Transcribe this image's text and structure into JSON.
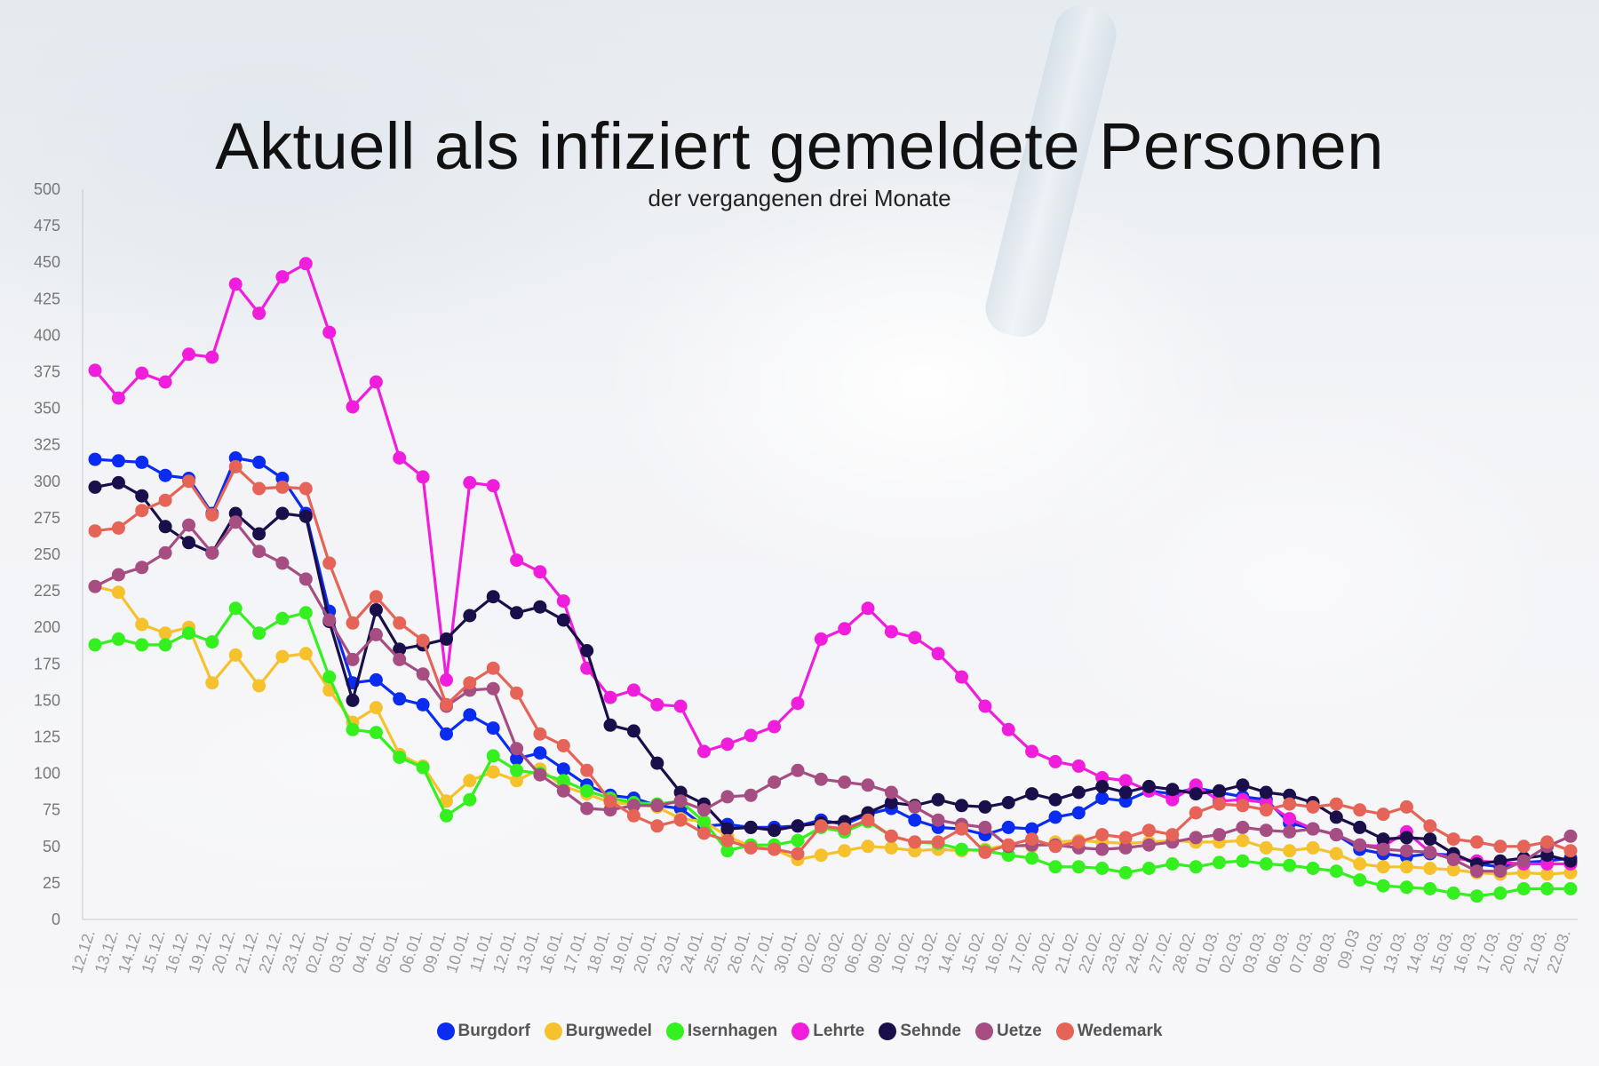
{
  "chart_data": {
    "type": "line",
    "title": "Aktuell als infiziert gemeldete Personen",
    "subtitle": "der vergangenen drei Monate",
    "xlabel": "",
    "ylabel": "",
    "ylim": [
      0,
      500
    ],
    "yticks": [
      0,
      25,
      50,
      75,
      100,
      125,
      150,
      175,
      200,
      225,
      250,
      275,
      300,
      325,
      350,
      375,
      400,
      425,
      450,
      475,
      500
    ],
    "grid": false,
    "legend_position": "bottom",
    "categories": [
      "12.12.",
      "13.12.",
      "14.12.",
      "15.12.",
      "16.12.",
      "19.12.",
      "20.12.",
      "21.12.",
      "22.12.",
      "23.12.",
      "02.01.",
      "03.01.",
      "04.01.",
      "05.01.",
      "06.01.",
      "09.01.",
      "10.01.",
      "11.01.",
      "12.01.",
      "13.01.",
      "16.01.",
      "17.01.",
      "18.01.",
      "19.01.",
      "20.01.",
      "23.01.",
      "24.01.",
      "25.01.",
      "26.01.",
      "27.01.",
      "30.01.",
      "02.02.",
      "03.02.",
      "06.02.",
      "09.02.",
      "10.02.",
      "13.02.",
      "14.02.",
      "15.02.",
      "16.02.",
      "17.02.",
      "20.02.",
      "21.02.",
      "22.02.",
      "23.02.",
      "24.02.",
      "27.02.",
      "28.02.",
      "01.03.",
      "02.03.",
      "03.03.",
      "06.03.",
      "07.03.",
      "08.03.",
      "09.03",
      "10.03.",
      "13.03.",
      "14.03.",
      "15.03.",
      "16.03.",
      "17.03.",
      "20.03.",
      "21.03.",
      "22.03."
    ],
    "series": [
      {
        "name": "Burgdorf",
        "color": "#0a2cf0",
        "values": [
          315,
          314,
          313,
          304,
          302,
          278,
          316,
          313,
          302,
          278,
          211,
          162,
          164,
          151,
          147,
          127,
          140,
          131,
          110,
          114,
          103,
          92,
          85,
          83,
          78,
          76,
          64,
          65,
          63,
          63,
          64,
          68,
          65,
          72,
          76,
          68,
          63,
          62,
          58,
          63,
          62,
          70,
          73,
          83,
          81,
          88,
          86,
          90,
          87,
          84,
          82,
          66,
          62,
          58,
          48,
          45,
          43,
          45,
          44,
          38,
          36,
          39,
          40,
          42
        ]
      },
      {
        "name": "Burgwedel",
        "color": "#f5c22e",
        "values": [
          228,
          224,
          202,
          196,
          200,
          162,
          181,
          160,
          180,
          182,
          157,
          135,
          145,
          113,
          105,
          81,
          95,
          101,
          95,
          103,
          91,
          86,
          80,
          79,
          77,
          69,
          67,
          57,
          50,
          48,
          41,
          44,
          47,
          50,
          49,
          47,
          48,
          47,
          48,
          51,
          50,
          53,
          54,
          53,
          52,
          53,
          54,
          53,
          53,
          54,
          49,
          47,
          49,
          45,
          38,
          36,
          36,
          35,
          34,
          32,
          31,
          32,
          31,
          32
        ]
      },
      {
        "name": "Isernhagen",
        "color": "#33f01e",
        "values": [
          188,
          192,
          188,
          188,
          196,
          190,
          213,
          196,
          206,
          210,
          166,
          130,
          128,
          111,
          104,
          71,
          82,
          112,
          102,
          100,
          95,
          88,
          83,
          80,
          79,
          81,
          67,
          47,
          51,
          51,
          54,
          63,
          60,
          67,
          57,
          53,
          52,
          48,
          47,
          44,
          42,
          36,
          36,
          35,
          32,
          35,
          38,
          36,
          39,
          40,
          38,
          37,
          35,
          33,
          27,
          23,
          22,
          21,
          18,
          16,
          18,
          21,
          21,
          21
        ]
      },
      {
        "name": "Lehrte",
        "color": "#f01edc",
        "values": [
          376,
          357,
          374,
          368,
          387,
          385,
          435,
          415,
          440,
          449,
          402,
          351,
          368,
          316,
          303,
          164,
          299,
          297,
          246,
          238,
          218,
          172,
          152,
          157,
          147,
          146,
          115,
          120,
          126,
          132,
          148,
          192,
          199,
          213,
          197,
          193,
          182,
          166,
          146,
          130,
          115,
          108,
          105,
          97,
          95,
          88,
          82,
          92,
          81,
          82,
          80,
          69,
          62,
          58,
          51,
          50,
          60,
          46,
          42,
          40,
          39,
          38,
          38,
          38
        ]
      },
      {
        "name": "Sehnde",
        "color": "#1a0f4a",
        "values": [
          296,
          299,
          290,
          269,
          258,
          251,
          278,
          264,
          278,
          276,
          204,
          150,
          212,
          185,
          188,
          192,
          208,
          221,
          210,
          214,
          205,
          184,
          133,
          129,
          107,
          87,
          79,
          62,
          63,
          61,
          64,
          66,
          67,
          73,
          80,
          78,
          82,
          78,
          77,
          80,
          86,
          82,
          87,
          91,
          87,
          91,
          89,
          86,
          88,
          92,
          87,
          85,
          80,
          70,
          63,
          55,
          56,
          55,
          45,
          38,
          40,
          42,
          44,
          40
        ]
      },
      {
        "name": "Uetze",
        "color": "#a64d82",
        "values": [
          228,
          236,
          241,
          251,
          270,
          251,
          272,
          252,
          244,
          233,
          205,
          178,
          195,
          178,
          168,
          146,
          157,
          158,
          117,
          99,
          88,
          76,
          75,
          78,
          78,
          81,
          75,
          84,
          85,
          94,
          102,
          96,
          94,
          92,
          87,
          77,
          68,
          65,
          63,
          50,
          51,
          51,
          49,
          48,
          49,
          51,
          53,
          56,
          58,
          63,
          61,
          60,
          62,
          58,
          51,
          48,
          47,
          46,
          41,
          33,
          33,
          40,
          50,
          57
        ]
      },
      {
        "name": "Wedemark",
        "color": "#e66457",
        "values": [
          266,
          268,
          280,
          287,
          300,
          277,
          310,
          295,
          296,
          295,
          244,
          203,
          221,
          203,
          191,
          147,
          162,
          172,
          155,
          127,
          119,
          102,
          81,
          71,
          64,
          68,
          59,
          54,
          49,
          48,
          45,
          64,
          62,
          68,
          57,
          53,
          53,
          62,
          46,
          51,
          55,
          50,
          53,
          58,
          56,
          61,
          58,
          73,
          79,
          78,
          75,
          79,
          77,
          79,
          75,
          72,
          77,
          64,
          55,
          53,
          50,
          50,
          53,
          47
        ]
      }
    ]
  },
  "legend": {
    "items": [
      {
        "label": "Burgdorf",
        "color": "#0a2cf0"
      },
      {
        "label": "Burgwedel",
        "color": "#f5c22e"
      },
      {
        "label": "Isernhagen",
        "color": "#33f01e"
      },
      {
        "label": "Lehrte",
        "color": "#f01edc"
      },
      {
        "label": "Sehnde",
        "color": "#1a0f4a"
      },
      {
        "label": "Uetze",
        "color": "#a64d82"
      },
      {
        "label": "Wedemark",
        "color": "#e66457"
      }
    ]
  }
}
